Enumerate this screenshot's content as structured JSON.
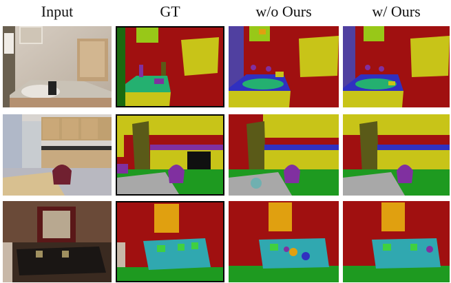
{
  "columns": [
    "Input",
    "GT",
    "w/o Ours",
    "w/ Ours"
  ],
  "rows": [
    {
      "scene": "bathroom"
    },
    {
      "scene": "kitchen"
    },
    {
      "scene": "living room"
    }
  ],
  "colors": {
    "wall": "#a01010",
    "cabinet": "#c8c418",
    "ceiling": "#98c818",
    "counter": "#24b070",
    "shelf_blue": "#3030c0",
    "dark_olive": "#5a5a18",
    "purple": "#8030a0",
    "floor": "#1e9a20",
    "table_gray": "#a8a8a8",
    "sofa": "#30a8b0",
    "painting": "#e0a010",
    "pillow": "#40d040",
    "black": "#101010",
    "door_green": "#1a6a10"
  }
}
